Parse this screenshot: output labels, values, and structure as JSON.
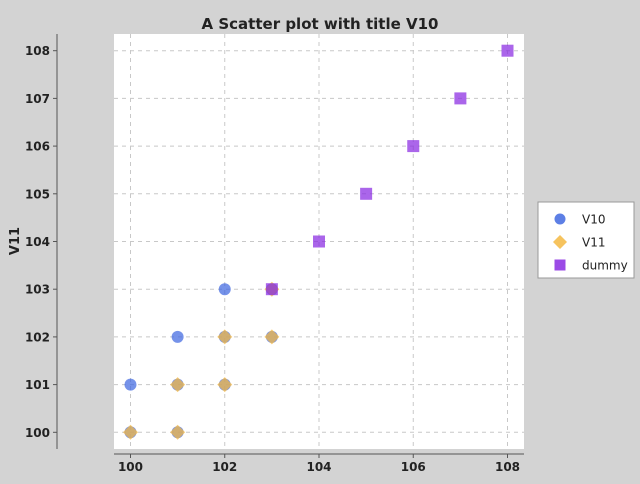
{
  "chart_data": {
    "type": "scatter",
    "title": "A Scatter plot with title V10",
    "xlabel": "",
    "ylabel": "V11",
    "xlim": [
      99.65,
      108.35
    ],
    "ylim": [
      99.65,
      108.35
    ],
    "xticks": [
      "100",
      "102",
      "104",
      "106",
      "108"
    ],
    "yticks": [
      "100",
      "101",
      "102",
      "103",
      "104",
      "105",
      "106",
      "107",
      "108"
    ],
    "xtick_values": [
      100,
      102,
      104,
      106,
      108
    ],
    "ytick_values": [
      100,
      101,
      102,
      103,
      104,
      105,
      106,
      107,
      108
    ],
    "grid": true,
    "legend_position": "right",
    "series": [
      {
        "name": "V10",
        "marker": "circle",
        "color": "#4169e1",
        "points": [
          [
            100,
            100
          ],
          [
            100,
            101
          ],
          [
            101,
            101
          ],
          [
            101,
            102
          ],
          [
            102,
            102
          ],
          [
            102,
            103
          ],
          [
            103,
            103
          ],
          [
            101,
            100
          ],
          [
            103,
            102
          ],
          [
            102,
            101
          ]
        ]
      },
      {
        "name": "V11",
        "marker": "diamond",
        "color": "#f5b942",
        "points": [
          [
            100,
            100
          ],
          [
            101,
            100
          ],
          [
            101,
            101
          ],
          [
            102,
            101
          ],
          [
            102,
            102
          ],
          [
            103,
            102
          ],
          [
            103,
            103
          ]
        ]
      },
      {
        "name": "dummy",
        "marker": "square",
        "color": "#8a2be2",
        "points": [
          [
            103,
            103
          ],
          [
            104,
            104
          ],
          [
            105,
            105
          ],
          [
            106,
            106
          ],
          [
            107,
            107
          ],
          [
            108,
            108
          ]
        ]
      }
    ]
  }
}
